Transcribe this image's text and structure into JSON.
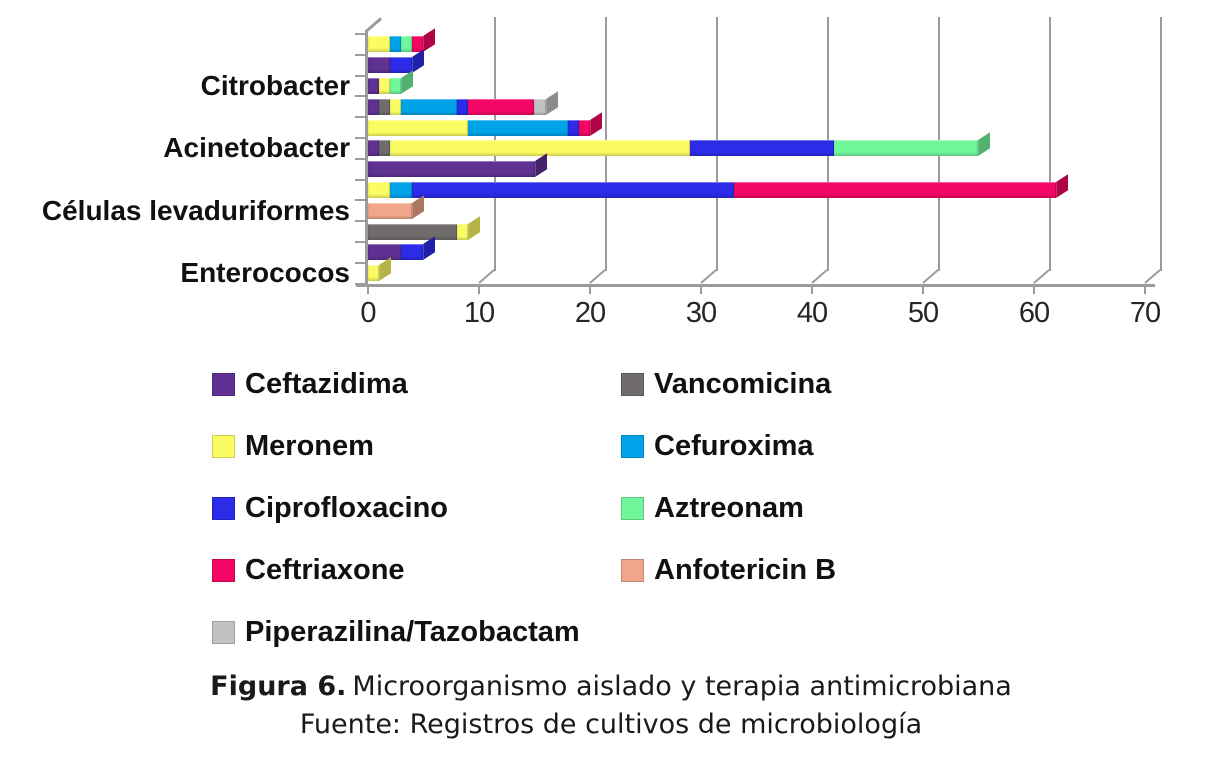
{
  "figure": {
    "caption_prefix": "Figura 6.",
    "caption_text": "Microorganismo aislado y terapia antimicrobiana",
    "caption_source": "Fuente: Registros de cultivos de microbiología"
  },
  "chart_data": {
    "type": "bar",
    "stacked": true,
    "orientation": "horizontal",
    "title": "",
    "xlabel": "",
    "ylabel": "",
    "xlim": [
      0,
      70
    ],
    "x_ticks": [
      0,
      10,
      20,
      30,
      40,
      50,
      60,
      70
    ],
    "grid": true,
    "style": "3d-horizontal-stacked",
    "legend_position": "bottom-left, two columns",
    "category_label_interval": 3,
    "colors": {
      "grid": "#9b9b9b",
      "axis": "#9b9b9b",
      "tick_text": "#262626",
      "label_text": "#111111",
      "background": "#ffffff"
    },
    "series": [
      {
        "name": "Ceftazidima",
        "color": "#5E3192"
      },
      {
        "name": "Vancomicina",
        "color": "#716C6C"
      },
      {
        "name": "Meronem",
        "color": "#FBFB63"
      },
      {
        "name": "Cefuroxima",
        "color": "#00A3E8"
      },
      {
        "name": "Ciprofloxacino",
        "color": "#2B2BE8"
      },
      {
        "name": "Aztreonam",
        "color": "#70F79B"
      },
      {
        "name": "Ceftriaxone",
        "color": "#F30664"
      },
      {
        "name": "Anfotericin B",
        "color": "#EFA689"
      },
      {
        "name": "Piperazilina/Tazobactam",
        "color": "#C2C2C2"
      }
    ],
    "rows": [
      {
        "label": "",
        "segments": [
          {
            "series": "Meronem",
            "value": 2
          },
          {
            "series": "Cefuroxima",
            "value": 1
          },
          {
            "series": "Aztreonam",
            "value": 1
          },
          {
            "series": "Ceftriaxone",
            "value": 1
          }
        ]
      },
      {
        "label": "",
        "segments": [
          {
            "series": "Ceftazidima",
            "value": 2
          },
          {
            "series": "Ciprofloxacino",
            "value": 2
          }
        ]
      },
      {
        "label": "Citrobacter",
        "segments": [
          {
            "series": "Ceftazidima",
            "value": 1
          },
          {
            "series": "Meronem",
            "value": 1
          },
          {
            "series": "Aztreonam",
            "value": 1
          }
        ]
      },
      {
        "label": "",
        "segments": [
          {
            "series": "Ceftazidima",
            "value": 1
          },
          {
            "series": "Vancomicina",
            "value": 1
          },
          {
            "series": "Meronem",
            "value": 1
          },
          {
            "series": "Cefuroxima",
            "value": 5
          },
          {
            "series": "Ciprofloxacino",
            "value": 1
          },
          {
            "series": "Ceftriaxone",
            "value": 6
          },
          {
            "series": "Piperazilina/Tazobactam",
            "value": 1
          }
        ]
      },
      {
        "label": "",
        "segments": [
          {
            "series": "Meronem",
            "value": 9
          },
          {
            "series": "Cefuroxima",
            "value": 9
          },
          {
            "series": "Ciprofloxacino",
            "value": 1
          },
          {
            "series": "Ceftriaxone",
            "value": 1
          }
        ]
      },
      {
        "label": "Acinetobacter",
        "segments": [
          {
            "series": "Ceftazidima",
            "value": 1
          },
          {
            "series": "Vancomicina",
            "value": 1
          },
          {
            "series": "Meronem",
            "value": 27
          },
          {
            "series": "Ciprofloxacino",
            "value": 13
          },
          {
            "series": "Aztreonam",
            "value": 13
          }
        ]
      },
      {
        "label": "",
        "segments": [
          {
            "series": "Ceftazidima",
            "value": 15
          }
        ]
      },
      {
        "label": "",
        "segments": [
          {
            "series": "Meronem",
            "value": 2
          },
          {
            "series": "Cefuroxima",
            "value": 2
          },
          {
            "series": "Ciprofloxacino",
            "value": 29
          },
          {
            "series": "Ceftriaxone",
            "value": 29
          }
        ]
      },
      {
        "label": "Células levaduriformes",
        "segments": [
          {
            "series": "Anfotericin B",
            "value": 4
          }
        ]
      },
      {
        "label": "",
        "segments": [
          {
            "series": "Vancomicina",
            "value": 8
          },
          {
            "series": "Meronem",
            "value": 1
          }
        ]
      },
      {
        "label": "",
        "segments": [
          {
            "series": "Ceftazidima",
            "value": 3
          },
          {
            "series": "Ciprofloxacino",
            "value": 2
          }
        ]
      },
      {
        "label": "Enterococos",
        "segments": [
          {
            "series": "Meronem",
            "value": 1
          }
        ]
      }
    ]
  }
}
